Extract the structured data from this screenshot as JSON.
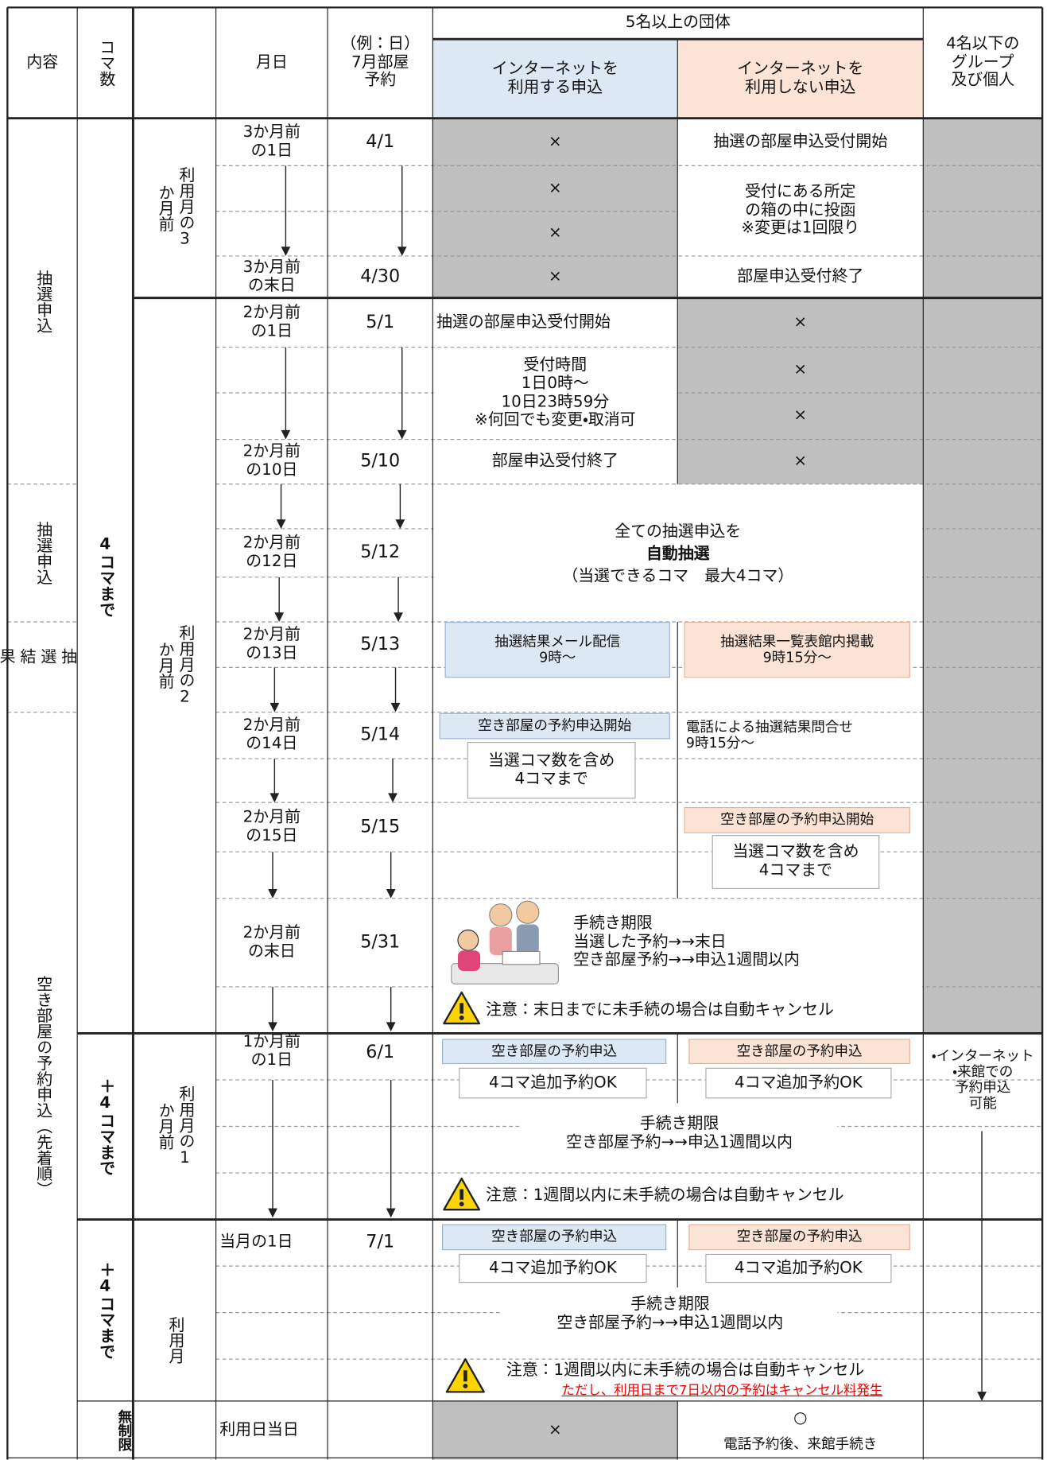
{
  "header": {
    "content": "内容",
    "koma": "コマ数",
    "date": "月日",
    "example": "（例：日）\n7月部屋\n予約",
    "group5": "5名以上の団体",
    "internet": "インターネットを\n利用する申込",
    "no_internet": "インターネットを\n利用しない申込",
    "group4": "4名以下の\nグループ\n及び個人"
  },
  "sections": [
    "抽選申込",
    "抽選申込",
    "抽選結果",
    "空き部屋の予約申込（先着順）"
  ],
  "limits": [
    "4コマまで",
    "＋4コマまで",
    "＋4コマまで",
    "無制限"
  ],
  "periods": [
    "利用月の3か月前",
    "利用月の2か月前",
    "利用月の1か月前",
    "利用月"
  ],
  "dates": [
    {
      "date": "3か月前\nの1日",
      "example": "4/1"
    },
    {
      "date": "3か月前\nの末日",
      "example": "4/30"
    },
    {
      "date": "2か月前\nの1日",
      "example": "5/1"
    },
    {
      "date": "2か月前\nの10日",
      "example": "5/10"
    },
    {
      "date": "2か月前\nの12日",
      "example": "5/12"
    },
    {
      "date": "2か月前\nの13日",
      "example": "5/13"
    },
    {
      "date": "2か月前\nの14日",
      "example": "5/14"
    },
    {
      "date": "2か月前\nの15日",
      "example": "5/15"
    },
    {
      "date": "2か月前\nの末日",
      "example": "5/31"
    },
    {
      "date": "1か月前\nの1日",
      "example": "6/1"
    },
    {
      "date": "当月の1日",
      "example": "7/1"
    },
    {
      "date": "利用日当日"
    }
  ],
  "crosses": [
    "×",
    "×",
    "×",
    "×",
    "×",
    "×",
    "×",
    "×"
  ],
  "lottery_3m": {
    "start": "抽選の部屋申込受付開始",
    "method": "受付にある所定\nの箱の中に投函\n※変更は1回限り",
    "end": "部屋申込受付終了"
  },
  "lottery_2m": {
    "start": "抽選の部屋申込受付開始",
    "hours": "受付時間\n1日0時～\n10日23時59分\n※何回でも変更・取消可",
    "end": "部屋申込受付終了"
  },
  "draw": {
    "line1": "全ての抽選申込を",
    "line2": "自動抽選",
    "line3": "（当選できるコマ　最大4コマ）"
  },
  "results": {
    "internet": "抽選結果メール配信\n9時～",
    "no_internet": "抽選結果一覧表館内掲載\n9時15分～",
    "phone": "電話による抽選結果問合せ\n9時15分～"
  },
  "vacancy_2m": {
    "internet_start": "空き部屋の予約申込開始",
    "internet_limit": "当選コマ数を含め\n4コマまで",
    "no_internet_start": "空き部屋の予約申込開始",
    "no_internet_limit": "当選コマ数を含め\n4コマまで",
    "deadline": "手続き期限\n当選した予約→→末日\n空き部屋予約→→申込1週間以内",
    "warning": "注意：末日までに未手続の場合は自動キャンセル"
  },
  "vacancy_1m": {
    "internet": "空き部屋の予約申込",
    "internet_add": "4コマ追加予約OK",
    "no_internet": "空き部屋の予約申込",
    "no_internet_add": "4コマ追加予約OK",
    "deadline": "手続き期限\n空き部屋予約→→申込1週間以内",
    "warning": "注意：1週間以内に未手続の場合は自動キャンセル",
    "group4": "・インターネット\n・来館での\n予約申込\n可能"
  },
  "vacancy_month": {
    "internet": "空き部屋の予約申込",
    "internet_add": "4コマ追加予約OK",
    "no_internet": "空き部屋の予約申込",
    "no_internet_add": "4コマ追加予約OK",
    "deadline": "手続き期限\n空き部屋予約→→申込1週間以内",
    "warning": "注意：1週間以内に未手続の場合は自動キャンセル",
    "warning_note": "ただし、利用日まで7日以内の予約はキャンセル料発生"
  },
  "same_day": {
    "cross": "×",
    "circle": "○",
    "circle_note": "電話予約後、来館手続き"
  }
}
